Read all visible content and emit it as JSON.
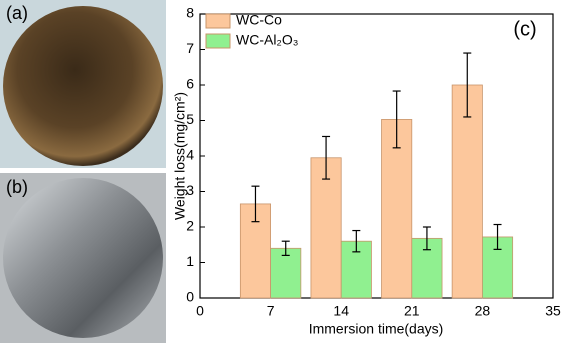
{
  "photo_labels": [
    "(a)",
    "(b)"
  ],
  "chart_data": {
    "type": "bar",
    "annotation": "(c)",
    "x_label": "Immersion time(days)",
    "y_label": "Weight loss(mg/cm²)",
    "x": [
      7,
      14,
      21,
      28
    ],
    "series": [
      {
        "name": "WC-Co",
        "color": "#fcc79c",
        "values": [
          2.65,
          3.95,
          5.03,
          6.0
        ],
        "errors": [
          0.5,
          0.6,
          0.8,
          0.9
        ]
      },
      {
        "name": "WC-Al₂O₃",
        "color": "#90f090",
        "values": [
          1.4,
          1.6,
          1.68,
          1.72
        ],
        "errors": [
          0.2,
          0.3,
          0.32,
          0.35
        ]
      }
    ],
    "xlim": [
      0,
      35
    ],
    "xticks": [
      0,
      7,
      14,
      21,
      28,
      35
    ],
    "ylim": [
      0,
      8
    ],
    "yticks": [
      0,
      1,
      2,
      3,
      4,
      5,
      6,
      7,
      8
    ],
    "legend": "upper left"
  }
}
